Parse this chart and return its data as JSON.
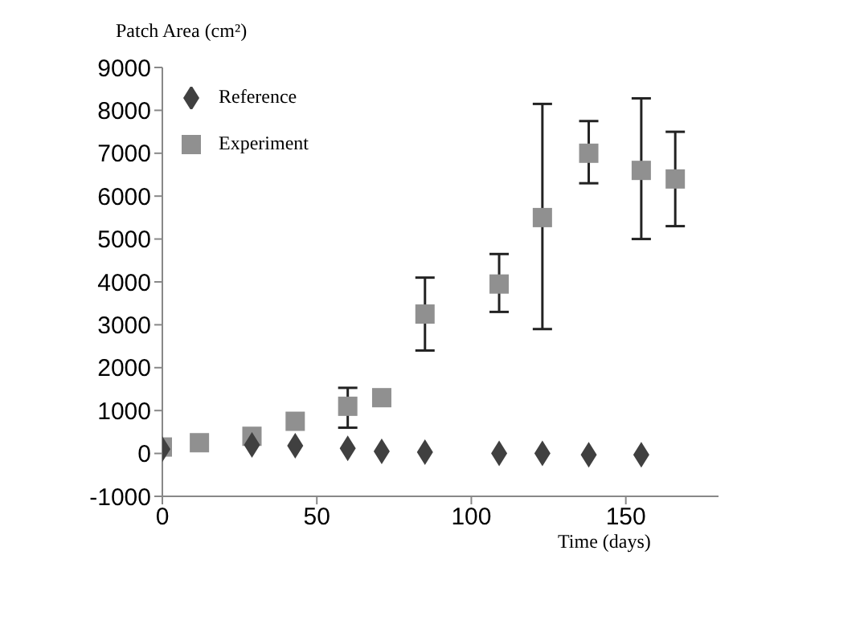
{
  "chart_data": {
    "type": "scatter",
    "xlabel": "Time (days)",
    "ylabel": "Patch Area (cm²)",
    "xlim": [
      0,
      180
    ],
    "xticks": [
      0,
      50,
      100,
      150
    ],
    "ylim": [
      -1000,
      9000
    ],
    "yticks": [
      -1000,
      0,
      1000,
      2000,
      3000,
      4000,
      5000,
      6000,
      7000,
      8000,
      9000
    ],
    "legend": "top left",
    "series": [
      {
        "name": "Reference",
        "color": "#404040",
        "marker": "diamond",
        "x": [
          0,
          29,
          43,
          60,
          71,
          85,
          109,
          123,
          138,
          155
        ],
        "values": [
          100,
          200,
          180,
          120,
          50,
          30,
          0,
          0,
          -30,
          -30
        ]
      },
      {
        "name": "Experiment",
        "color": "#909090",
        "marker": "square",
        "x": [
          0,
          12,
          29,
          43,
          60,
          71,
          85,
          109,
          123,
          138,
          155,
          166
        ],
        "values": [
          150,
          250,
          400,
          750,
          1100,
          1300,
          3250,
          3950,
          5500,
          7000,
          6600,
          6400
        ],
        "errors": [
          null,
          null,
          null,
          null,
          [
            600,
            1530
          ],
          null,
          [
            2400,
            4100
          ],
          [
            3300,
            4650
          ],
          [
            2900,
            8150
          ],
          [
            6300,
            7750
          ],
          [
            5000,
            8280
          ],
          [
            5300,
            7500
          ]
        ]
      }
    ]
  }
}
